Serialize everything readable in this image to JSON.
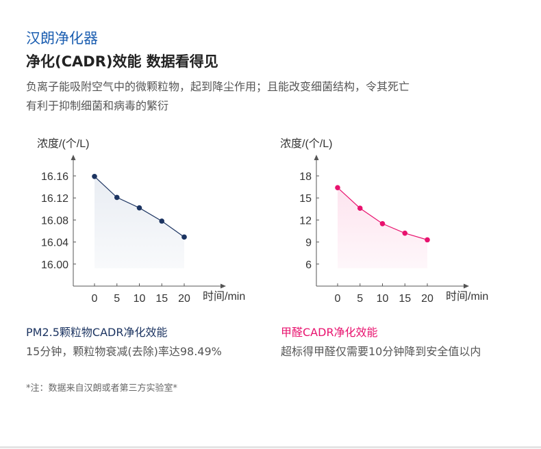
{
  "header": {
    "brand": "汉朗净化器",
    "headline": "净化(CADR)效能  数据看得见",
    "desc_line1": "负离子能吸附空气中的微颗粒物，起到降尘作用；且能改变细菌结构，令其死亡",
    "desc_line2": "有利于抑制细菌和病毒的繁衍"
  },
  "chart_data": [
    {
      "type": "line",
      "ylabel": "浓度/(个/L)",
      "xlabel": "时间/min",
      "x": [
        0,
        5,
        10,
        15,
        20
      ],
      "xticks": [
        "0",
        "5",
        "10",
        "15",
        "20"
      ],
      "yticks": [
        "16.16",
        "16.12",
        "16.08",
        "16.04",
        "16.00"
      ],
      "ytick_values": [
        16.16,
        16.12,
        16.08,
        16.04,
        16.0
      ],
      "ylim": [
        15.96,
        16.2
      ],
      "values": [
        16.159,
        16.121,
        16.102,
        16.078,
        16.049
      ],
      "color": "#1c3461",
      "fill": "#e9edf3",
      "caption_title": "PM2.5颗粒物CADR净化效能",
      "caption_text": "15分钟，颗粒物衰减(去除)率达98.49%"
    },
    {
      "type": "line",
      "ylabel": "浓度/(个/L)",
      "xlabel": "时间/min",
      "x": [
        0,
        5,
        10,
        15,
        20
      ],
      "xticks": [
        "0",
        "5",
        "10",
        "15",
        "20"
      ],
      "yticks": [
        "18",
        "15",
        "12",
        "9",
        "6"
      ],
      "ytick_values": [
        18,
        15,
        12,
        9,
        6
      ],
      "ylim": [
        3,
        21
      ],
      "values": [
        16.4,
        13.6,
        11.5,
        10.2,
        9.3
      ],
      "color": "#e8126e",
      "fill": "#fde4ef",
      "caption_title": "甲醛CADR净化效能",
      "caption_text": "超标得甲醛仅需要10分钟降到安全值以内"
    }
  ],
  "note": "*注：数据来自汉朗或者第三方实验室*"
}
